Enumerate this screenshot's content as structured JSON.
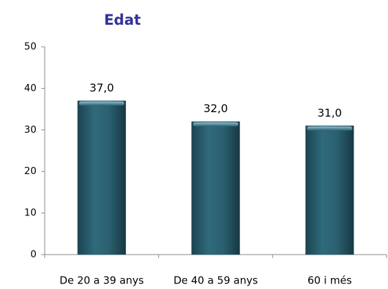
{
  "chart_data": {
    "type": "bar",
    "title": "Edat",
    "categories": [
      "De 20 a 39 anys",
      "De 40 a 59 anys",
      "60 i més"
    ],
    "values": [
      37,
      32,
      31
    ],
    "value_labels": [
      "37,0",
      "32,0",
      "31,0"
    ],
    "color": "#2b6070",
    "ylim": [
      0,
      50
    ],
    "yticks": [
      0,
      10,
      20,
      30,
      40,
      50
    ],
    "grid": false
  }
}
